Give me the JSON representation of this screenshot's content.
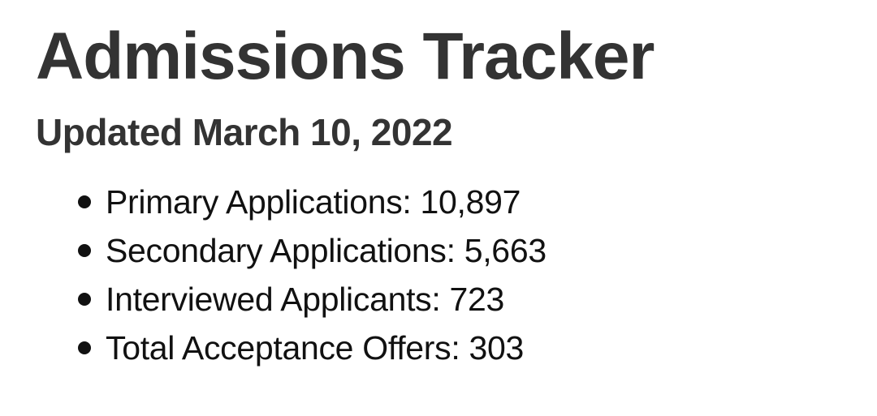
{
  "page": {
    "title": "Admissions Tracker",
    "subtitle": "Updated March 10, 2022"
  },
  "stats": {
    "items": [
      {
        "label": "Primary Applications:",
        "value": "10,897"
      },
      {
        "label": "Secondary Applications:",
        "value": "5,663"
      },
      {
        "label": "Interviewed Applicants:",
        "value": "723"
      },
      {
        "label": "Total Acceptance Offers:",
        "value": "303"
      }
    ]
  },
  "colors": {
    "background": "#ffffff",
    "heading": "#333333",
    "body": "#111111"
  }
}
